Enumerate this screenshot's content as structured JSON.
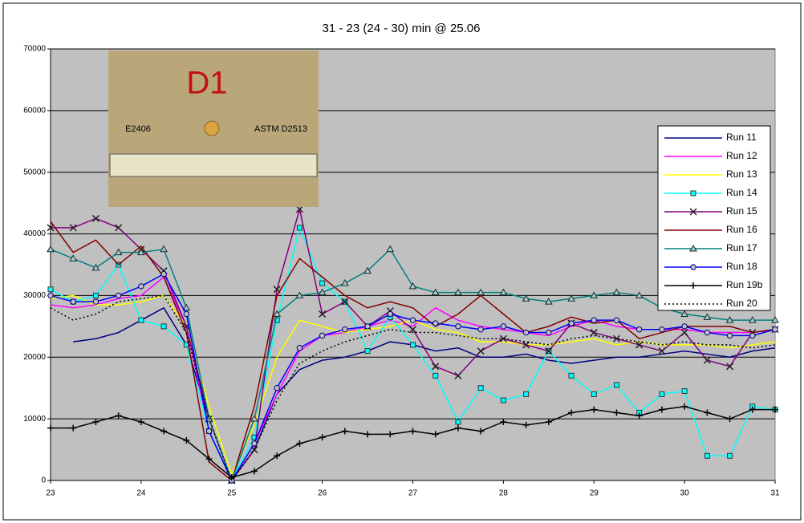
{
  "chart_data": {
    "type": "line",
    "title": "31 - 23 (24 - 30) min @ 25.06",
    "photo_labels": [
      "D1",
      "E2406",
      "ASTM D2513"
    ],
    "x": [
      23,
      23.25,
      23.5,
      23.75,
      24,
      24.25,
      24.5,
      24.75,
      25,
      25.25,
      25.5,
      25.75,
      26,
      26.25,
      26.5,
      26.75,
      27,
      27.25,
      27.5,
      27.75,
      28,
      28.25,
      28.5,
      28.75,
      29,
      29.25,
      29.5,
      29.75,
      30,
      30.25,
      30.5,
      30.75,
      31
    ],
    "xlim": [
      23,
      31
    ],
    "xticks": [
      23,
      24,
      25,
      26,
      27,
      28,
      29,
      30,
      31
    ],
    "ylim": [
      0,
      70000
    ],
    "yticks": [
      0,
      10000,
      20000,
      30000,
      40000,
      50000,
      60000,
      70000
    ],
    "grid": true,
    "legend": "right",
    "series": [
      {
        "name": "Run 11",
        "color": "#000080",
        "marker": "none",
        "values": [
          null,
          22500,
          23000,
          24000,
          26000,
          28000,
          22000,
          10000,
          0,
          5000,
          14000,
          18000,
          19500,
          20000,
          21000,
          22500,
          22000,
          21000,
          21500,
          20000,
          20000,
          20500,
          19500,
          19000,
          19500,
          20000,
          20000,
          20500,
          21000,
          20500,
          20000,
          21000,
          21500
        ]
      },
      {
        "name": "Run 12",
        "color": "#ff00ff",
        "marker": "none",
        "values": [
          28500,
          28000,
          28500,
          29500,
          30000,
          33000,
          25000,
          8000,
          0,
          6000,
          14000,
          21000,
          23500,
          24000,
          25000,
          26000,
          25000,
          28000,
          26000,
          25000,
          24500,
          24000,
          23500,
          25000,
          26000,
          25000,
          24500,
          24500,
          24500,
          24000,
          24000,
          24000,
          24500
        ]
      },
      {
        "name": "Run 13",
        "color": "#ffff00",
        "marker": "none",
        "values": [
          29500,
          30000,
          28500,
          28500,
          29000,
          30000,
          25000,
          12000,
          1000,
          9000,
          20000,
          26000,
          25000,
          24000,
          24500,
          25000,
          26000,
          24500,
          24000,
          22500,
          22500,
          22000,
          22000,
          22500,
          23000,
          22000,
          22500,
          22000,
          22000,
          22000,
          21500,
          22000,
          22500
        ]
      },
      {
        "name": "Run 14",
        "color": "#00ffff",
        "marker": "square",
        "values": [
          31000,
          29000,
          30000,
          35000,
          26000,
          25000,
          22000,
          8000,
          0,
          7000,
          26000,
          41000,
          32000,
          29000,
          21000,
          26500,
          22000,
          17000,
          9500,
          15000,
          13000,
          14000,
          21000,
          17000,
          14000,
          15500,
          11000,
          14000,
          14500,
          4000,
          4000,
          12000,
          11500
        ]
      },
      {
        "name": "Run 15",
        "color": "#800080",
        "marker": "x",
        "values": [
          41000,
          41000,
          42500,
          41000,
          37500,
          34000,
          25000,
          10000,
          0,
          5000,
          31000,
          44000,
          27000,
          29000,
          25000,
          27500,
          24500,
          18500,
          17000,
          21000,
          23000,
          22000,
          21000,
          25500,
          24000,
          23000,
          22000,
          21000,
          24000,
          19500,
          18500,
          24000,
          24500
        ]
      },
      {
        "name": "Run 16",
        "color": "#800000",
        "marker": "none",
        "values": [
          42000,
          37000,
          39000,
          35000,
          38000,
          33000,
          24000,
          3000,
          0,
          12000,
          30000,
          36000,
          33000,
          30000,
          28000,
          29000,
          28000,
          25000,
          27000,
          30000,
          27000,
          24000,
          25000,
          26500,
          25500,
          26000,
          23000,
          24000,
          25000,
          25000,
          25000,
          24000,
          24500
        ]
      },
      {
        "name": "Run 17",
        "color": "#008080",
        "marker": "triangle",
        "values": [
          37500,
          36000,
          34500,
          37000,
          37000,
          37500,
          28000,
          10000,
          0,
          10000,
          27000,
          30000,
          30500,
          32000,
          34000,
          37500,
          31500,
          30500,
          30500,
          30500,
          30500,
          29500,
          29000,
          29500,
          30000,
          30500,
          30000,
          28000,
          27000,
          26500,
          26000,
          26000,
          26000
        ]
      },
      {
        "name": "Run 18",
        "color": "#0000ff",
        "marker": "circle",
        "values": [
          30000,
          29000,
          29000,
          30000,
          31500,
          33500,
          27000,
          8000,
          0,
          6000,
          15000,
          21500,
          23500,
          24500,
          25000,
          27000,
          26000,
          25500,
          25000,
          24500,
          25000,
          24000,
          24000,
          25500,
          26000,
          26000,
          24500,
          24500,
          25000,
          24000,
          23500,
          23500,
          24500
        ]
      },
      {
        "name": "Run 19b",
        "color": "#000000",
        "marker": "plus",
        "values": [
          8500,
          8500,
          9500,
          10500,
          9500,
          8000,
          6500,
          3500,
          500,
          1500,
          4000,
          6000,
          7000,
          8000,
          7500,
          7500,
          8000,
          7500,
          8500,
          8000,
          9500,
          9000,
          9500,
          11000,
          11500,
          11000,
          10500,
          11500,
          12000,
          11000,
          10000,
          11500,
          11500
        ]
      },
      {
        "name": "Run 20",
        "color": "#000000",
        "marker": "none",
        "dash": "dotted",
        "values": [
          28000,
          26000,
          27000,
          29000,
          29500,
          30000,
          24000,
          10000,
          0,
          5000,
          13000,
          19000,
          21000,
          22500,
          23500,
          24500,
          24000,
          24000,
          23500,
          23000,
          23000,
          22500,
          22000,
          23000,
          23500,
          23000,
          22500,
          22000,
          22500,
          22000,
          22000,
          21500,
          22000
        ]
      }
    ]
  }
}
